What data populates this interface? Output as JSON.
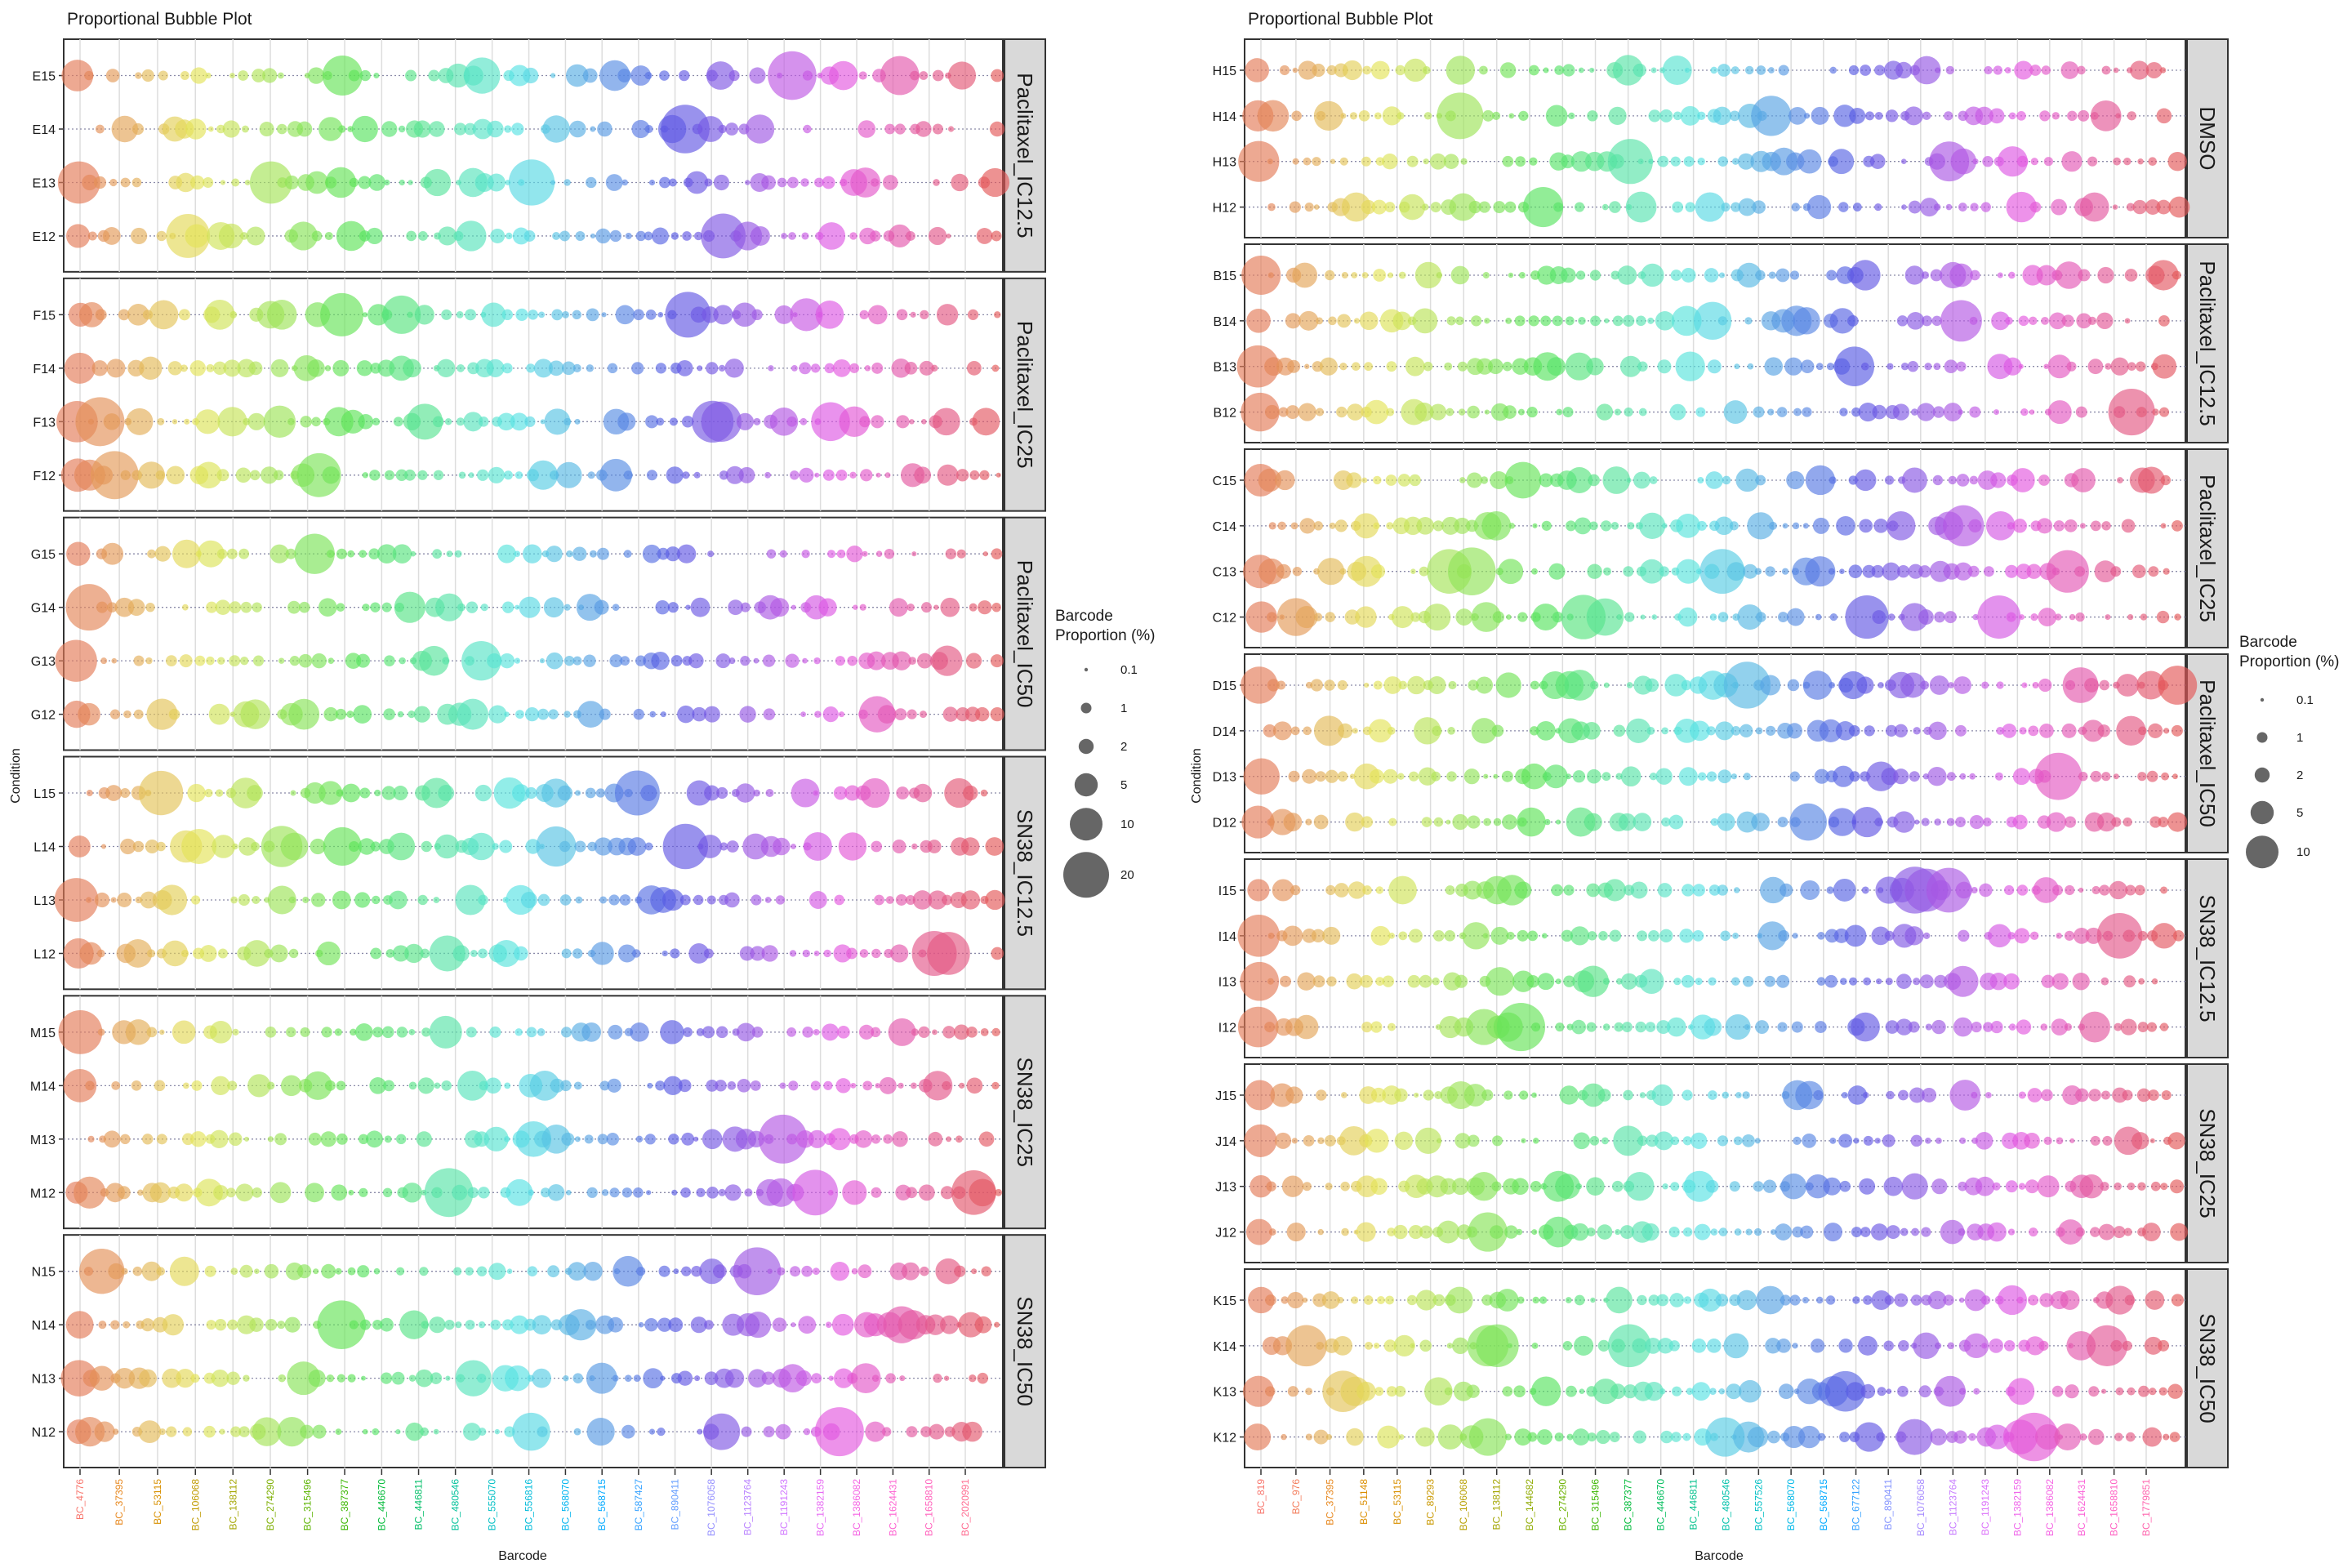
{
  "chart_data": [
    {
      "type": "scatter",
      "title": "Proportional Bubble Plot",
      "xlabel": "Barcode",
      "ylabel": "Condition",
      "legend": {
        "title_line1": "Barcode",
        "title_line2": "Proportion (%)",
        "values": [
          "0.1",
          "1",
          "2",
          "5",
          "10",
          "20"
        ]
      },
      "barcode_ticks": [
        {
          "label": "BC_4776",
          "color": "#F8766D"
        },
        {
          "label": "BC_37395",
          "color": "#E7861B"
        },
        {
          "label": "BC_53115",
          "color": "#D89000"
        },
        {
          "label": "BC_106068",
          "color": "#C09B00"
        },
        {
          "label": "BC_138112",
          "color": "#A3A500"
        },
        {
          "label": "BC_274290",
          "color": "#7CAE00"
        },
        {
          "label": "BC_315496",
          "color": "#5BB300"
        },
        {
          "label": "BC_387377",
          "color": "#39B600"
        },
        {
          "label": "BC_446670",
          "color": "#00BA38"
        },
        {
          "label": "BC_446811",
          "color": "#00BE67"
        },
        {
          "label": "BC_480546",
          "color": "#00C19A"
        },
        {
          "label": "BC_555070",
          "color": "#00BFC4"
        },
        {
          "label": "BC_556816",
          "color": "#00BBDA"
        },
        {
          "label": "BC_568070",
          "color": "#00B4EF"
        },
        {
          "label": "BC_568715",
          "color": "#00A9FF"
        },
        {
          "label": "BC_587427",
          "color": "#35A2FF"
        },
        {
          "label": "BC_890411",
          "color": "#619CFF"
        },
        {
          "label": "BC_1076058",
          "color": "#9590FF"
        },
        {
          "label": "BC_1123764",
          "color": "#B983FF"
        },
        {
          "label": "BC_1191243",
          "color": "#D177FF"
        },
        {
          "label": "BC_1382159",
          "color": "#E76BF3"
        },
        {
          "label": "BC_1386082",
          "color": "#F564E3"
        },
        {
          "label": "BC_1624431",
          "color": "#FD61D1"
        },
        {
          "label": "BC_1658810",
          "color": "#FF62BC"
        },
        {
          "label": "BC_2020991",
          "color": "#FF6C91"
        }
      ],
      "facets": [
        {
          "label": "Paclitaxel_IC12.5",
          "rows": [
            "E15",
            "E14",
            "E13",
            "E12"
          ]
        },
        {
          "label": "Paclitaxel_IC25",
          "rows": [
            "F15",
            "F14",
            "F13",
            "F12"
          ]
        },
        {
          "label": "Paclitaxel_IC50",
          "rows": [
            "G15",
            "G14",
            "G13",
            "G12"
          ]
        },
        {
          "label": "SN38_IC12.5",
          "rows": [
            "L15",
            "L14",
            "L13",
            "L12"
          ]
        },
        {
          "label": "SN38_IC25",
          "rows": [
            "M15",
            "M14",
            "M13",
            "M12"
          ]
        },
        {
          "label": "SN38_IC50",
          "rows": [
            "N15",
            "N14",
            "N13",
            "N12"
          ]
        }
      ],
      "notes": "Each row shows dozens of barcode bubbles whose area is proportional to barcode proportion (%); colour follows barcode hue order."
    },
    {
      "type": "scatter",
      "title": "Proportional Bubble Plot",
      "xlabel": "Barcode",
      "ylabel": "Condition",
      "legend": {
        "title_line1": "Barcode",
        "title_line2": "Proportion (%)",
        "values": [
          "0.1",
          "1",
          "2",
          "5",
          "10"
        ]
      },
      "barcode_ticks": [
        {
          "label": "BC_819",
          "color": "#F8766D"
        },
        {
          "label": "BC_976",
          "color": "#F37B59"
        },
        {
          "label": "BC_37395",
          "color": "#E7861B"
        },
        {
          "label": "BC_51148",
          "color": "#DB8E00"
        },
        {
          "label": "BC_53115",
          "color": "#D89000"
        },
        {
          "label": "BC_89293",
          "color": "#C99800"
        },
        {
          "label": "BC_106068",
          "color": "#B79F00"
        },
        {
          "label": "BC_138112",
          "color": "#A3A500"
        },
        {
          "label": "BC_144682",
          "color": "#8FAA00"
        },
        {
          "label": "BC_274290",
          "color": "#6BB100"
        },
        {
          "label": "BC_315496",
          "color": "#39B600"
        },
        {
          "label": "BC_387377",
          "color": "#00BA38"
        },
        {
          "label": "BC_446670",
          "color": "#00BD5C"
        },
        {
          "label": "BC_446811",
          "color": "#00C08B"
        },
        {
          "label": "BC_480546",
          "color": "#00C1AA"
        },
        {
          "label": "BC_557526",
          "color": "#00BFC4"
        },
        {
          "label": "BC_568070",
          "color": "#00B8E7"
        },
        {
          "label": "BC_568715",
          "color": "#00A9FF"
        },
        {
          "label": "BC_677122",
          "color": "#35A2FF"
        },
        {
          "label": "BC_890411",
          "color": "#8494FF"
        },
        {
          "label": "BC_1076058",
          "color": "#A58AFF"
        },
        {
          "label": "BC_1123764",
          "color": "#C77CFF"
        },
        {
          "label": "BC_1191243",
          "color": "#DC71FA"
        },
        {
          "label": "BC_1382159",
          "color": "#EF67EB"
        },
        {
          "label": "BC_1386082",
          "color": "#F564E3"
        },
        {
          "label": "BC_1624431",
          "color": "#FB61D7"
        },
        {
          "label": "BC_1658810",
          "color": "#FF61C3"
        },
        {
          "label": "BC_1779851",
          "color": "#FF65AE"
        }
      ],
      "facets": [
        {
          "label": "DMSO",
          "rows": [
            "H15",
            "H14",
            "H13",
            "H12"
          ]
        },
        {
          "label": "Paclitaxel_IC12.5",
          "rows": [
            "B15",
            "B14",
            "B13",
            "B12"
          ]
        },
        {
          "label": "Paclitaxel_IC25",
          "rows": [
            "C15",
            "C14",
            "C13",
            "C12"
          ]
        },
        {
          "label": "Paclitaxel_IC50",
          "rows": [
            "D15",
            "D14",
            "D13",
            "D12"
          ]
        },
        {
          "label": "SN38_IC12.5",
          "rows": [
            "I15",
            "I14",
            "I13",
            "I12"
          ]
        },
        {
          "label": "SN38_IC25",
          "rows": [
            "J15",
            "J14",
            "J13",
            "J12"
          ]
        },
        {
          "label": "SN38_IC50",
          "rows": [
            "K15",
            "K14",
            "K13",
            "K12"
          ]
        }
      ],
      "notes": "Each row shows dozens of barcode bubbles whose area is proportional to barcode proportion (%); colour follows barcode hue order."
    }
  ]
}
